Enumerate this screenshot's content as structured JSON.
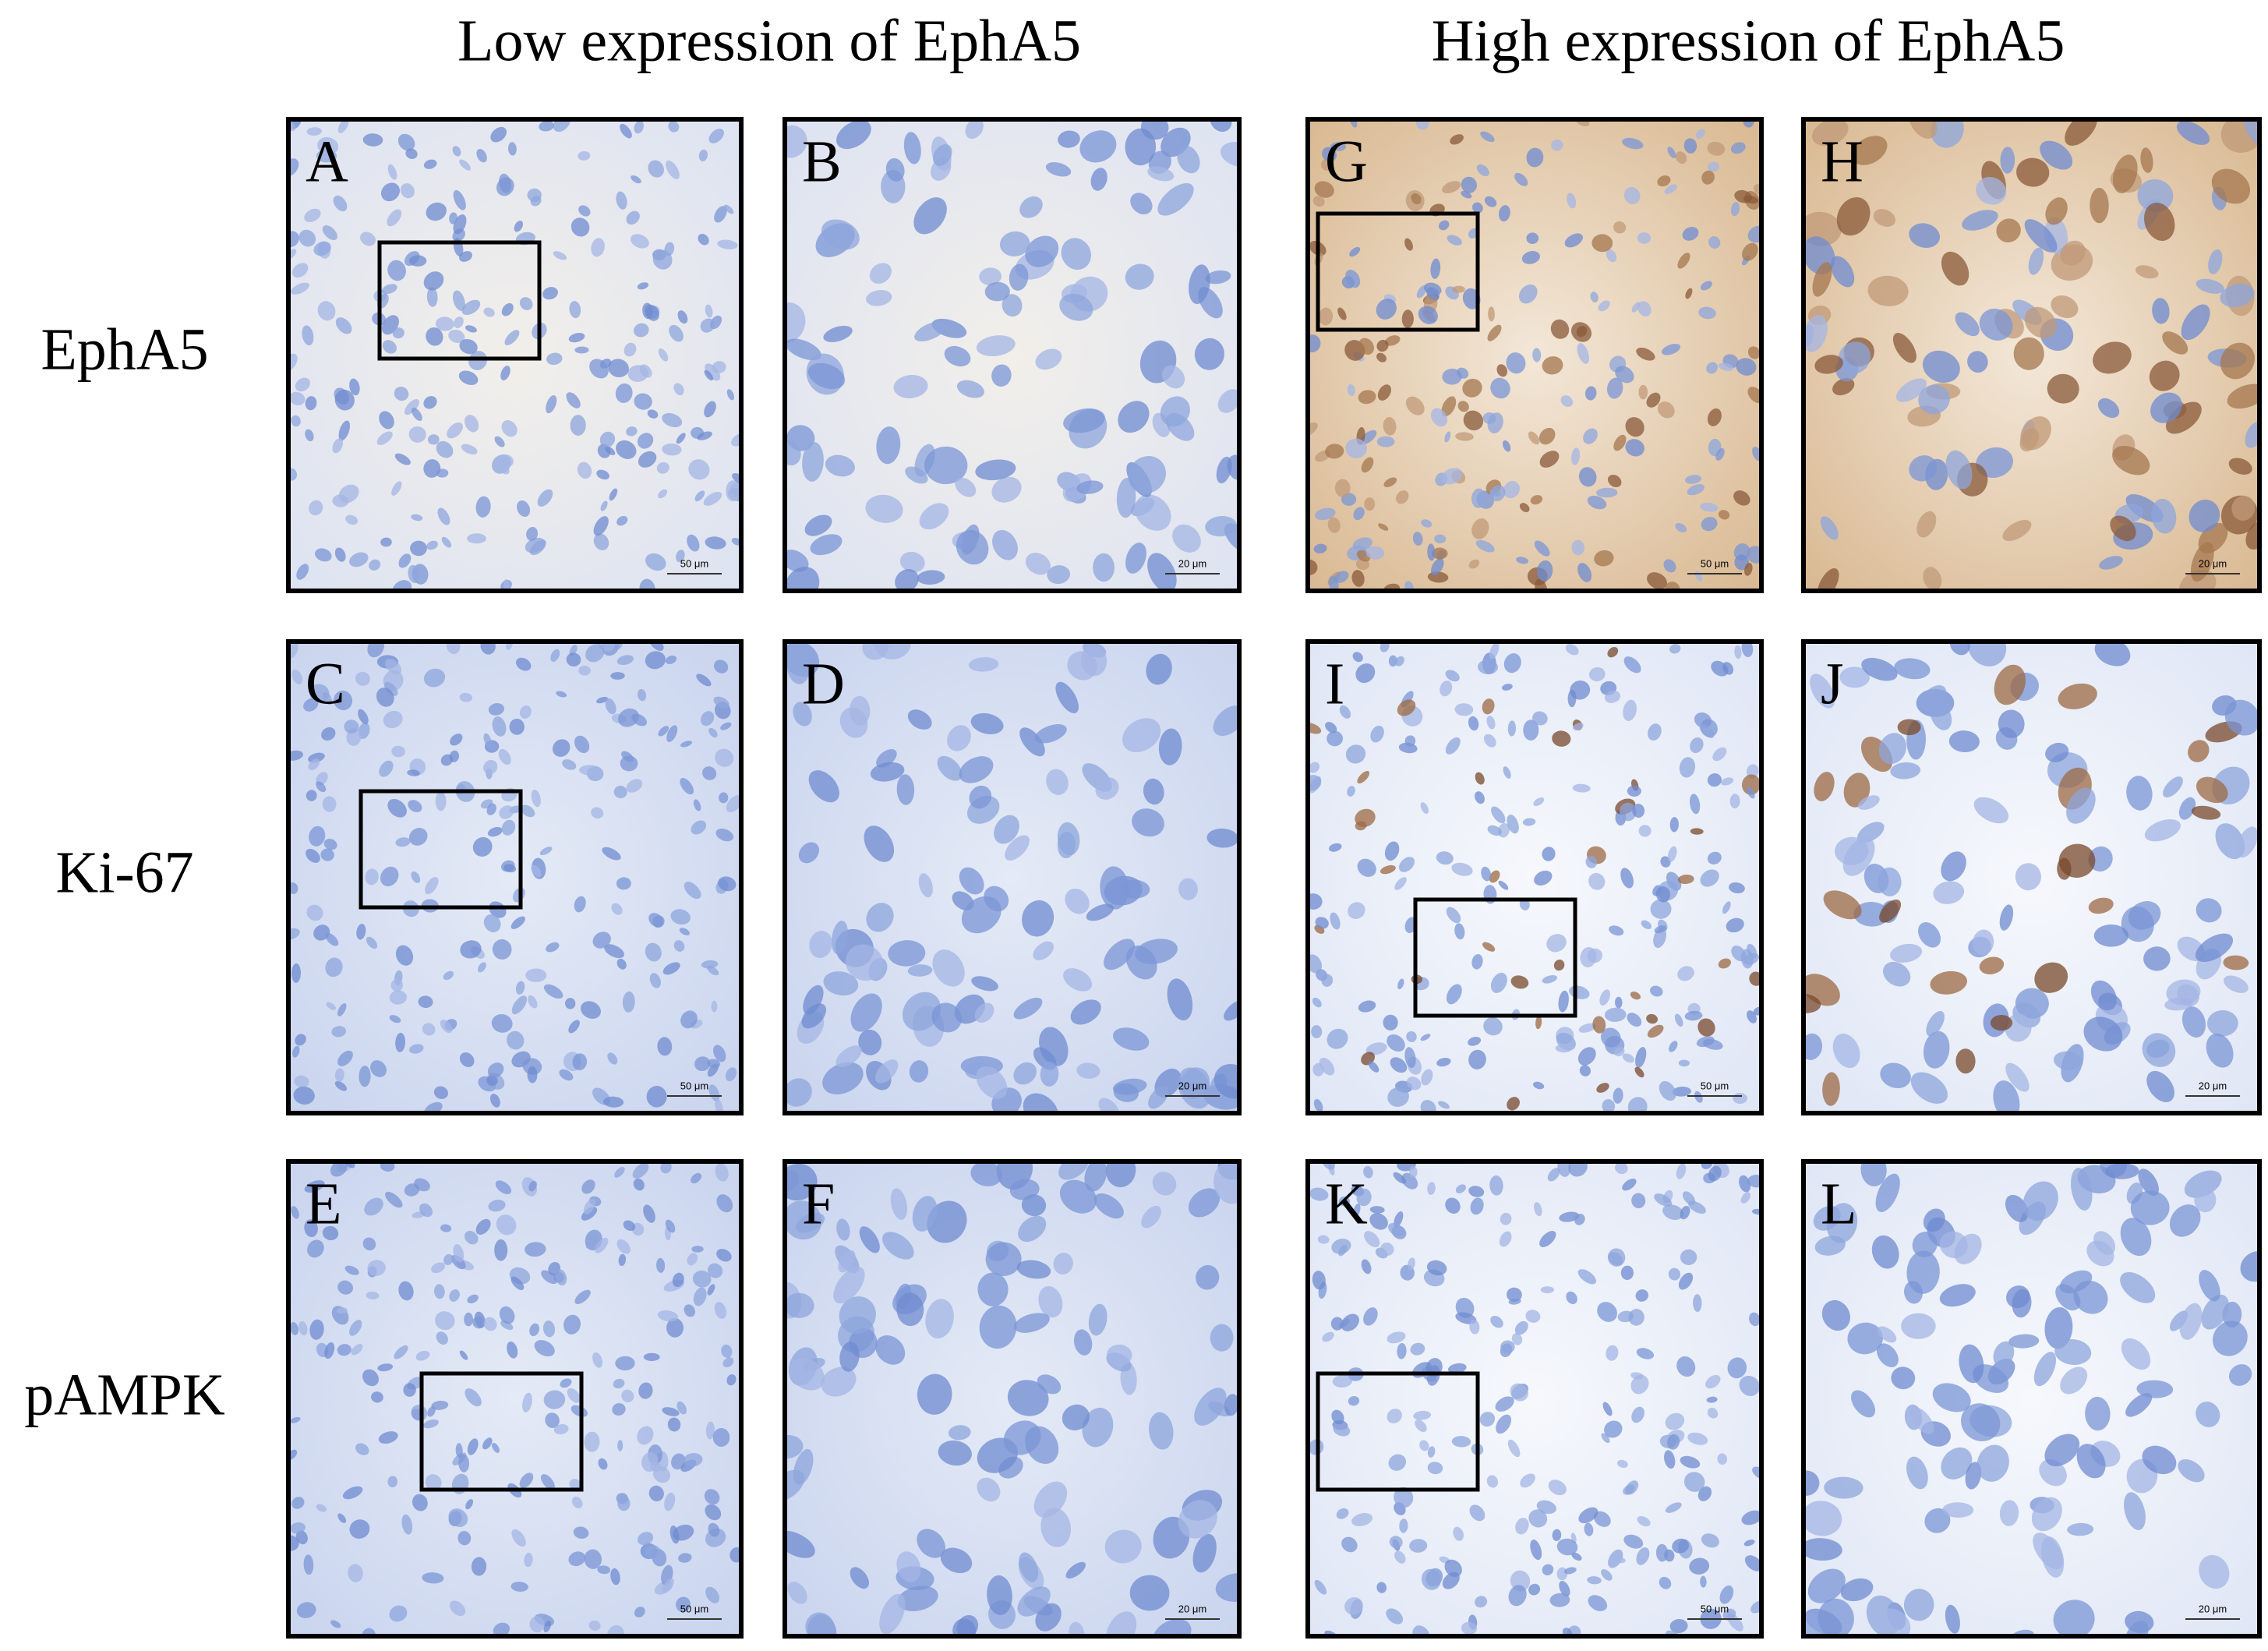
{
  "headers": [
    "Low expression of EphA5",
    "High expression of EphA5"
  ],
  "rows": [
    {
      "label": "EphA5",
      "panels": [
        {
          "letter": "A",
          "scale_bar": "50 μm"
        },
        {
          "letter": "B",
          "scale_bar": "20 μm"
        },
        {
          "letter": "G",
          "scale_bar": "50 μm"
        },
        {
          "letter": "H",
          "scale_bar": "20 μm"
        }
      ]
    },
    {
      "label": "Ki-67",
      "panels": [
        {
          "letter": "C",
          "scale_bar": "50 μm"
        },
        {
          "letter": "D",
          "scale_bar": "20 μm"
        },
        {
          "letter": "I",
          "scale_bar": "50 μm"
        },
        {
          "letter": "J",
          "scale_bar": "20 μm"
        }
      ]
    },
    {
      "label": "pAMPK",
      "panels": [
        {
          "letter": "E",
          "scale_bar": "50 μm"
        },
        {
          "letter": "F",
          "scale_bar": "20 μm"
        },
        {
          "letter": "K",
          "scale_bar": "50 μm"
        },
        {
          "letter": "L",
          "scale_bar": "20 μm"
        }
      ]
    }
  ]
}
